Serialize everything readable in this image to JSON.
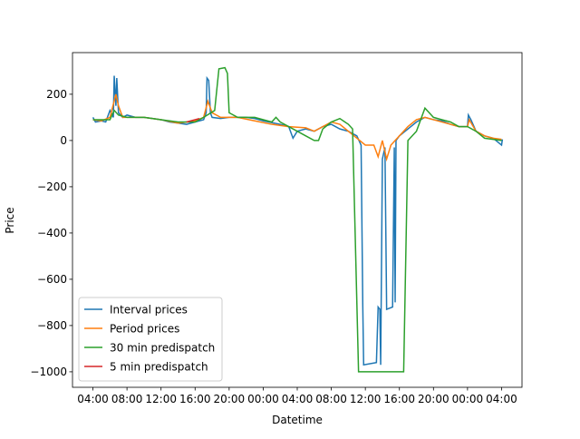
{
  "chart_data": {
    "type": "line",
    "xlabel": "Datetime",
    "ylabel": "Price",
    "xlim": [
      -2.4,
      50.4
    ],
    "ylim": [
      -1067,
      380
    ],
    "xticks": [
      {
        "value": 0,
        "label": "04:00"
      },
      {
        "value": 4,
        "label": "08:00"
      },
      {
        "value": 8,
        "label": "12:00"
      },
      {
        "value": 12,
        "label": "16:00"
      },
      {
        "value": 16,
        "label": "20:00"
      },
      {
        "value": 20,
        "label": "00:00"
      },
      {
        "value": 24,
        "label": "04:00"
      },
      {
        "value": 28,
        "label": "08:00"
      },
      {
        "value": 32,
        "label": "12:00"
      },
      {
        "value": 36,
        "label": "16:00"
      },
      {
        "value": 40,
        "label": "20:00"
      },
      {
        "value": 44,
        "label": "00:00"
      },
      {
        "value": 48,
        "label": "04:00"
      }
    ],
    "yticks": [
      {
        "value": -1000,
        "label": "−1000"
      },
      {
        "value": -800,
        "label": "−800"
      },
      {
        "value": -600,
        "label": "−600"
      },
      {
        "value": -400,
        "label": "−400"
      },
      {
        "value": -200,
        "label": "−200"
      },
      0,
      200
    ],
    "legend": "lower left",
    "series": [
      {
        "name": "Interval prices",
        "color": "#1f77b4",
        "x": [
          0,
          0.3,
          1,
          1.5,
          2,
          2.4,
          2.5,
          2.7,
          2.8,
          3,
          3.5,
          4,
          5,
          6,
          7,
          8,
          9,
          10,
          11,
          12,
          13,
          13.3,
          13.4,
          13.6,
          13.8,
          14,
          15,
          16,
          18,
          19,
          20,
          22,
          23,
          23.5,
          24,
          25,
          26,
          27,
          28,
          29,
          30,
          31,
          31.5,
          31.7,
          31.8,
          33.3,
          33.5,
          33.7,
          33.8,
          34,
          34.3,
          34.5,
          35.2,
          35.4,
          35.5,
          35.6,
          36,
          37,
          38,
          39,
          40,
          41,
          42,
          43,
          44,
          44.1,
          44.4,
          45,
          46,
          47,
          48,
          48.1
        ],
        "values": [
          100,
          80,
          85,
          80,
          130,
          100,
          280,
          150,
          270,
          120,
          100,
          110,
          100,
          100,
          95,
          90,
          80,
          75,
          70,
          80,
          90,
          120,
          270,
          260,
          120,
          100,
          95,
          100,
          100,
          95,
          85,
          70,
          60,
          10,
          40,
          50,
          40,
          60,
          70,
          50,
          40,
          20,
          -20,
          -720,
          -970,
          -960,
          -720,
          -730,
          -970,
          -80,
          -30,
          -730,
          -720,
          -30,
          -700,
          0,
          20,
          50,
          80,
          100,
          90,
          85,
          70,
          60,
          60,
          110,
          90,
          40,
          20,
          10,
          -20,
          5
        ]
      },
      {
        "name": "Period prices",
        "color": "#ff7f0e",
        "x": [
          0,
          1,
          2,
          2.7,
          3,
          3.5,
          6,
          8,
          10,
          12,
          13,
          13.5,
          14,
          15,
          17,
          19,
          21,
          23,
          25,
          26,
          28,
          29,
          30,
          31,
          32,
          33,
          33.5,
          34,
          34.5,
          35,
          36,
          37,
          38,
          39,
          40,
          42,
          43,
          44,
          44.2,
          45,
          46,
          47,
          48
        ],
        "values": [
          90,
          85,
          100,
          200,
          150,
          100,
          100,
          90,
          75,
          85,
          100,
          170,
          120,
          100,
          100,
          85,
          70,
          60,
          55,
          40,
          80,
          70,
          40,
          10,
          -20,
          -20,
          -70,
          0,
          -80,
          -20,
          20,
          60,
          90,
          100,
          90,
          70,
          60,
          60,
          90,
          40,
          20,
          10,
          5
        ]
      },
      {
        "name": "30 min predispatch",
        "color": "#2ca02c",
        "x": [
          0,
          1,
          2,
          2.5,
          3,
          4,
          6,
          8,
          10,
          12,
          13,
          14.3,
          14.8,
          15.5,
          15.8,
          16,
          17,
          19,
          21,
          21.5,
          22,
          24,
          25,
          26,
          26.5,
          27,
          28,
          29,
          30,
          30.5,
          31.2,
          36.5,
          37,
          38,
          39,
          40,
          41,
          42,
          43,
          44,
          45,
          46,
          47,
          48
        ],
        "values": [
          90,
          90,
          90,
          130,
          110,
          100,
          100,
          90,
          80,
          80,
          100,
          130,
          310,
          315,
          290,
          120,
          100,
          100,
          80,
          100,
          80,
          40,
          20,
          0,
          0,
          50,
          80,
          95,
          70,
          50,
          -1000,
          -1000,
          0,
          40,
          140,
          100,
          90,
          80,
          60,
          60,
          40,
          10,
          5,
          0
        ]
      },
      {
        "name": "5 min predispatch",
        "color": "#d62728",
        "x": [
          11,
          11.5,
          12,
          12.5
        ],
        "values": [
          80,
          85,
          90,
          95
        ]
      }
    ]
  }
}
